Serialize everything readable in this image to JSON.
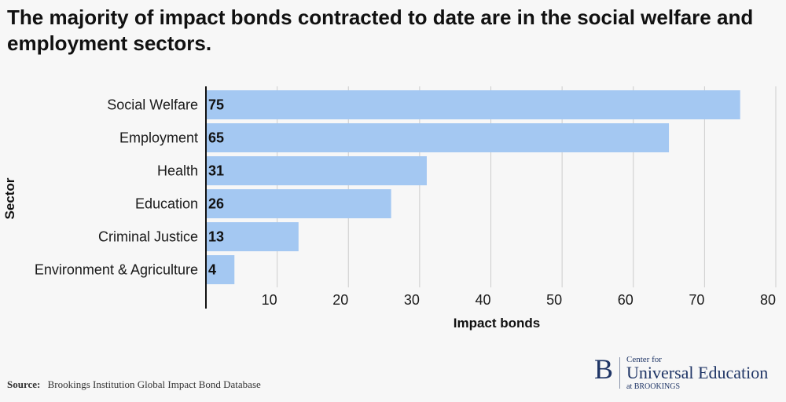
{
  "title": "The majority of impact bonds contracted to date are in the social welfare and employment sectors.",
  "source_label": "Source:",
  "source_text": "Brookings Institution Global Impact Bond Database",
  "logo": {
    "mark": "B",
    "line1": "Center for",
    "line2": "Universal Education",
    "line3": "at BROOKINGS"
  },
  "colors": {
    "bar": "#a4c8f2",
    "grid": "#cccccc",
    "axis": "#111111"
  },
  "chart_data": {
    "type": "bar",
    "orientation": "horizontal",
    "categories": [
      "Social Welfare",
      "Employment",
      "Health",
      "Education",
      "Criminal Justice",
      "Environment & Agriculture"
    ],
    "values": [
      75,
      65,
      31,
      26,
      13,
      4
    ],
    "xlabel": "Impact bonds",
    "ylabel": "Sector",
    "xlim": [
      0,
      80
    ],
    "xticks": [
      10,
      20,
      30,
      40,
      50,
      60,
      70,
      80
    ],
    "grid": "vertical"
  }
}
